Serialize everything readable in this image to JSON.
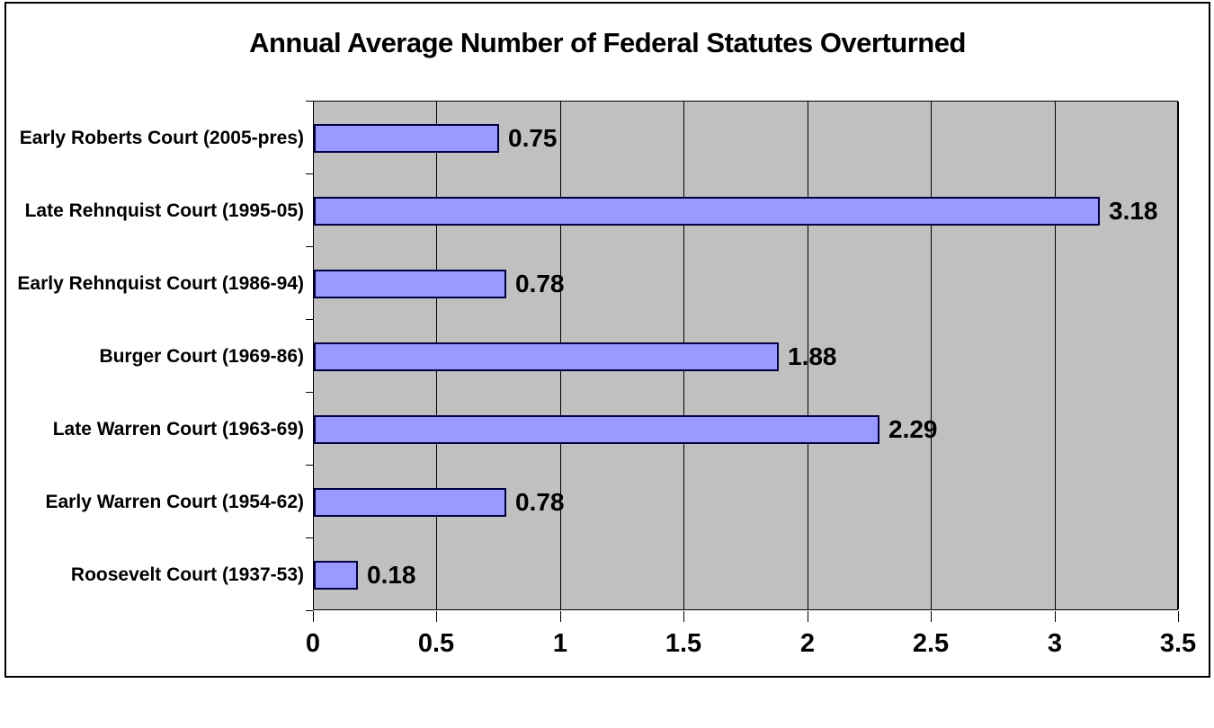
{
  "title": "Annual Average Number of Federal Statutes Overturned",
  "colors": {
    "plot_background": "#c0c0c0",
    "bar_fill": "#9999ff",
    "bar_border": "#000040",
    "gridline": "#000000",
    "frame_border": "#000000",
    "text": "#000000"
  },
  "chart_data": {
    "type": "bar",
    "orientation": "horizontal",
    "title": "Annual Average Number of Federal Statutes Overturned",
    "categories": [
      "Early Roberts Court (2005-pres)",
      "Late Rehnquist Court (1995-05)",
      "Early Rehnquist Court (1986-94)",
      "Burger Court (1969-86)",
      "Late Warren Court (1963-69)",
      "Early Warren Court (1954-62)",
      "Roosevelt Court (1937-53)"
    ],
    "values": [
      0.75,
      3.18,
      0.78,
      1.88,
      2.29,
      0.78,
      0.18
    ],
    "value_labels": [
      "0.75",
      "3.18",
      "0.78",
      "1.88",
      "2.29",
      "0.78",
      "0.18"
    ],
    "xlabel": "",
    "ylabel": "",
    "xlim": [
      0,
      3.5
    ],
    "xticks": [
      0,
      0.5,
      1,
      1.5,
      2,
      2.5,
      3,
      3.5
    ],
    "xtick_labels": [
      "0",
      "0.5",
      "1",
      "1.5",
      "2",
      "2.5",
      "3",
      "3.5"
    ],
    "grid": true,
    "legend": "none"
  }
}
